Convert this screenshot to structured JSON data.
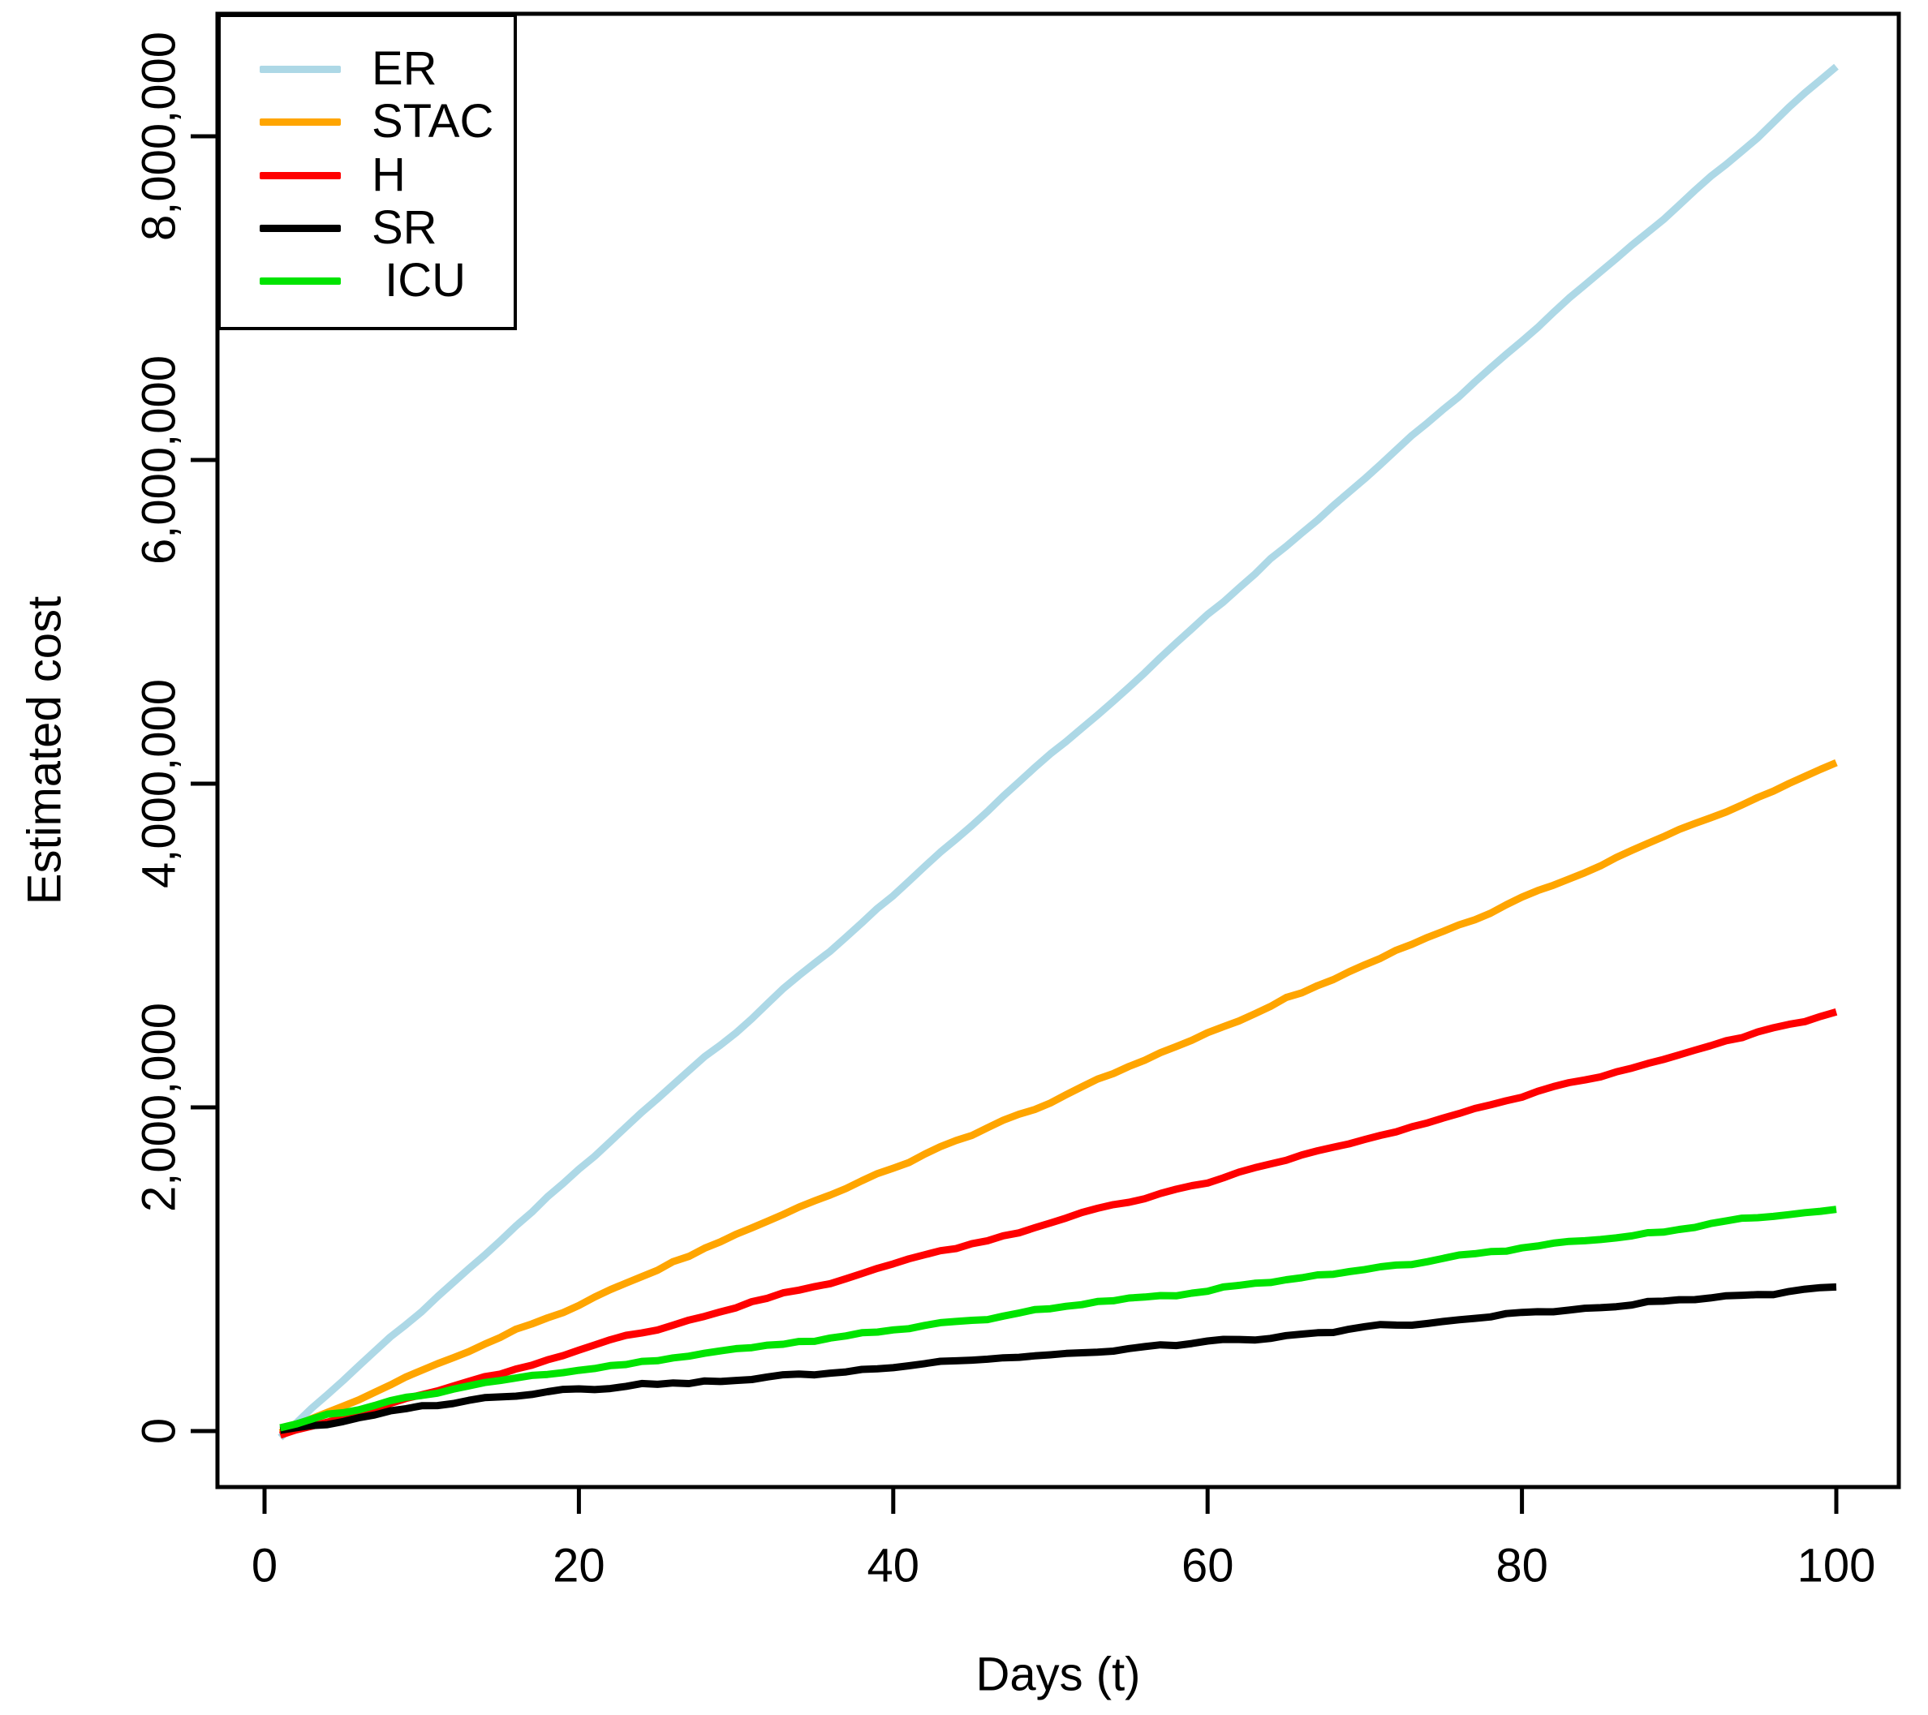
{
  "figure": {
    "background_color": "#ffffff"
  },
  "chart_data": {
    "type": "line",
    "title": "",
    "xlabel": "Days (t)",
    "ylabel": "Estimated cost",
    "xlim": [
      -3,
      104
    ],
    "ylim": [
      -350000,
      8760000
    ],
    "grid": false,
    "x_ticks": [
      0,
      20,
      40,
      60,
      80,
      100
    ],
    "x_tick_labels": [
      "0",
      "20",
      "40",
      "60",
      "80",
      "100"
    ],
    "y_ticks": [
      0,
      2000000,
      4000000,
      6000000,
      8000000
    ],
    "y_tick_labels": [
      "0",
      "2,000,000",
      "4,000,000",
      "6,000,000",
      "8,000,000"
    ],
    "x": [
      1,
      10,
      20,
      30,
      40,
      50,
      60,
      70,
      80,
      90,
      100
    ],
    "series": [
      {
        "name": "ER",
        "legend_label": "ER",
        "color": "#ADD8E6",
        "values": [
          -40000,
          750000,
          1620000,
          2470000,
          3320000,
          4170000,
          5030000,
          5880000,
          6730000,
          7580000,
          8430000
        ]
      },
      {
        "name": "STAC",
        "legend_label": "STAC",
        "color": "#FFA500",
        "values": [
          -10000,
          370000,
          790000,
          1210000,
          1630000,
          2040000,
          2460000,
          2880000,
          3290000,
          3710000,
          4130000
        ]
      },
      {
        "name": "H",
        "legend_label": "H",
        "color": "#FF0000",
        "values": [
          -25000,
          230000,
          500000,
          760000,
          1030000,
          1290000,
          1550000,
          1810000,
          2070000,
          2330000,
          2590000
        ]
      },
      {
        "name": "SR",
        "legend_label": "SR",
        "color": "#000000",
        "values": [
          5000,
          150000,
          250000,
          320000,
          390000,
          470000,
          555000,
          640000,
          725000,
          810000,
          890000
        ]
      },
      {
        "name": "ICU",
        "legend_label": " ICU",
        "color": "#00E400",
        "values": [
          20000,
          225000,
          385000,
          505000,
          625000,
          750000,
          875000,
          1000000,
          1125000,
          1250000,
          1370000
        ]
      }
    ],
    "legend": {
      "position": "top-left",
      "items": [
        "ER",
        "STAC",
        "H",
        "SR",
        " ICU"
      ]
    }
  }
}
